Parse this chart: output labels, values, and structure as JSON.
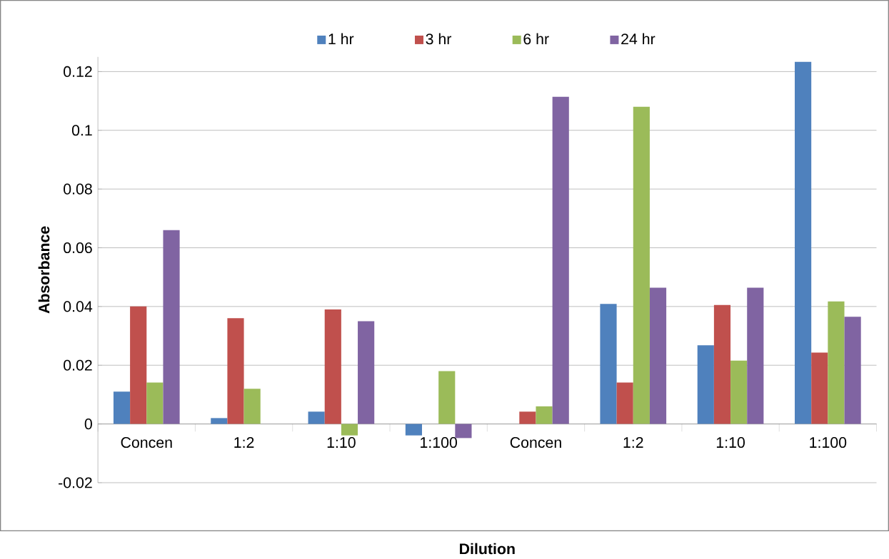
{
  "chart_data": {
    "type": "bar",
    "xlabel": "Dilution",
    "ylabel": "Absorbance",
    "categories": [
      "Concen",
      "1:2",
      "1:10",
      "1:100",
      "Concen",
      "1:2",
      "1:10",
      "1:100"
    ],
    "series": [
      {
        "name": "1 hr",
        "color": "#4f81bd",
        "values": [
          0.011,
          0.002,
          0.0042,
          -0.0039,
          null,
          0.0409,
          0.0268,
          0.1233
        ]
      },
      {
        "name": "3 hr",
        "color": "#c0504d",
        "values": [
          0.04,
          0.036,
          0.039,
          null,
          0.0042,
          0.0141,
          0.0405,
          0.0243
        ]
      },
      {
        "name": "6 hr",
        "color": "#9bbb59",
        "values": [
          0.0141,
          0.012,
          -0.0039,
          0.018,
          0.006,
          0.108,
          0.0216,
          0.0417
        ]
      },
      {
        "name": "24 hr",
        "color": "#8064a2",
        "values": [
          0.066,
          null,
          0.035,
          -0.0048,
          0.1114,
          0.0464,
          0.0464,
          0.0365
        ]
      }
    ],
    "ylim": [
      -0.02,
      0.125
    ],
    "yticks": [
      -0.02,
      0,
      0.02,
      0.04,
      0.06,
      0.08,
      0.1,
      0.12
    ],
    "grid": "y",
    "legend": "top"
  }
}
